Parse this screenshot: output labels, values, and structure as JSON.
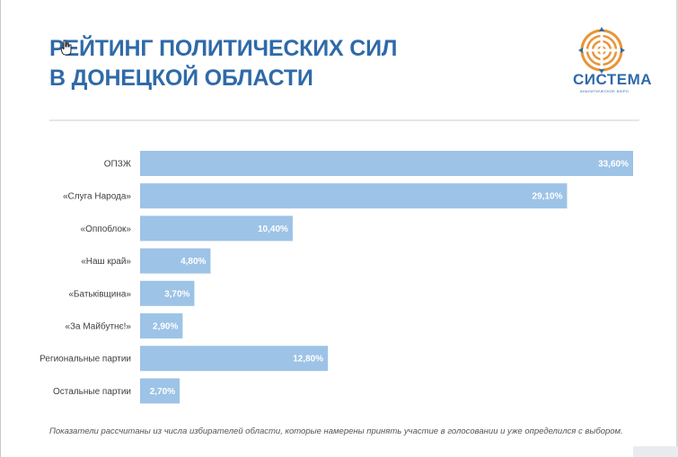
{
  "title": {
    "line1": "РЕЙТИНГ ПОЛИТИЧЕСКИХ СИЛ",
    "line2": "В ДОНЕЦКОЙ ОБЛАСТИ"
  },
  "logo": {
    "word": "СИСТЕМА",
    "subtitle": "АНАЛИТИЧЕСКОЕ БЮРО"
  },
  "footnote": "Показатели рассчитаны из числа избирателей области, которые намерены принять участие в голосовании и уже определился с выбором.",
  "colors": {
    "bar": "#9dc3e6",
    "title": "#2f6aa8",
    "logo_orange": "#e8953a"
  },
  "chart_data": {
    "type": "bar",
    "orientation": "horizontal",
    "categories": [
      "ОПЗЖ",
      "«Слуга Народа»",
      "«Оппоблок»",
      "«Наш край»",
      "«Батьківщина»",
      "«За Майбутнє!»",
      "Региональные партии",
      "Остальные партии"
    ],
    "values": [
      33.6,
      29.1,
      10.4,
      4.8,
      3.7,
      2.9,
      12.8,
      2.7
    ],
    "labels": [
      "33,60%",
      "29,10%",
      "10,40%",
      "4,80%",
      "3,70%",
      "2,90%",
      "12,80%",
      "2,70%"
    ],
    "xlim": [
      0,
      33.6
    ],
    "grid": false,
    "legend": "none"
  }
}
